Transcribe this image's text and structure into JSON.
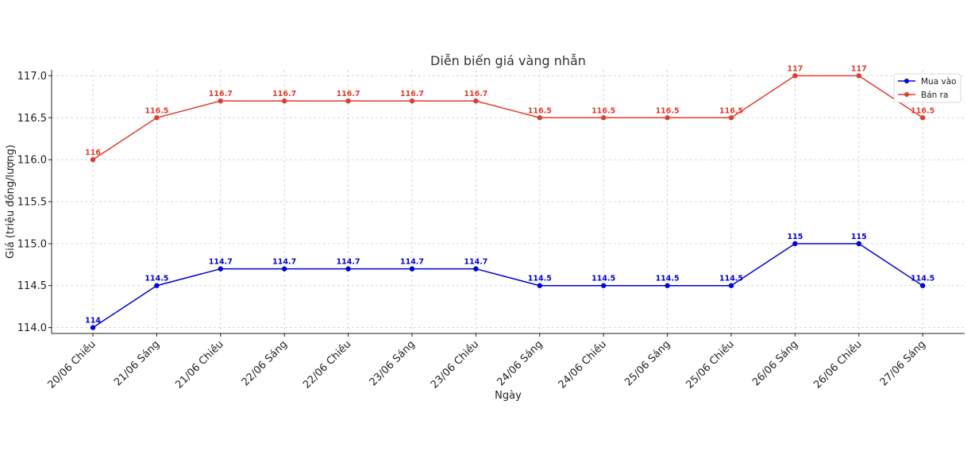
{
  "chart_data": {
    "type": "line",
    "title": "Diễn biến giá vàng nhẫn",
    "xlabel": "Ngày",
    "ylabel": "Giá (triệu đồng/lượng)",
    "categories": [
      "20/06 Chiều",
      "21/06 Sáng",
      "21/06 Chiều",
      "22/06 Sáng",
      "22/06 Chiều",
      "23/06 Sáng",
      "23/06 Chiều",
      "24/06 Sáng",
      "24/06 Chiều",
      "25/06 Sáng",
      "25/06 Chiều",
      "26/06 Sáng",
      "26/06 Chiều",
      "27/06 Sáng"
    ],
    "yticks": [
      "114.0",
      "114.5",
      "115.0",
      "115.5",
      "116.0",
      "116.5",
      "117.0"
    ],
    "ylim": [
      113.93,
      117.07
    ],
    "grid": true,
    "legend_position": "top-right",
    "series": [
      {
        "name": "Mua vào",
        "color": "#0000dd",
        "values": [
          114,
          114.5,
          114.7,
          114.7,
          114.7,
          114.7,
          114.7,
          114.5,
          114.5,
          114.5,
          114.5,
          115,
          115,
          114.5
        ],
        "labels": [
          "114",
          "114.5",
          "114.7",
          "114.7",
          "114.7",
          "114.7",
          "114.7",
          "114.5",
          "114.5",
          "114.5",
          "114.5",
          "115",
          "115",
          "114.5"
        ]
      },
      {
        "name": "Bán ra",
        "color": "#e03c2d",
        "values": [
          116,
          116.5,
          116.7,
          116.7,
          116.7,
          116.7,
          116.7,
          116.5,
          116.5,
          116.5,
          116.5,
          117,
          117,
          116.5
        ],
        "labels": [
          "116",
          "116.5",
          "116.7",
          "116.7",
          "116.7",
          "116.7",
          "116.7",
          "116.5",
          "116.5",
          "116.5",
          "116.5",
          "117",
          "117",
          "116.5"
        ]
      }
    ]
  }
}
